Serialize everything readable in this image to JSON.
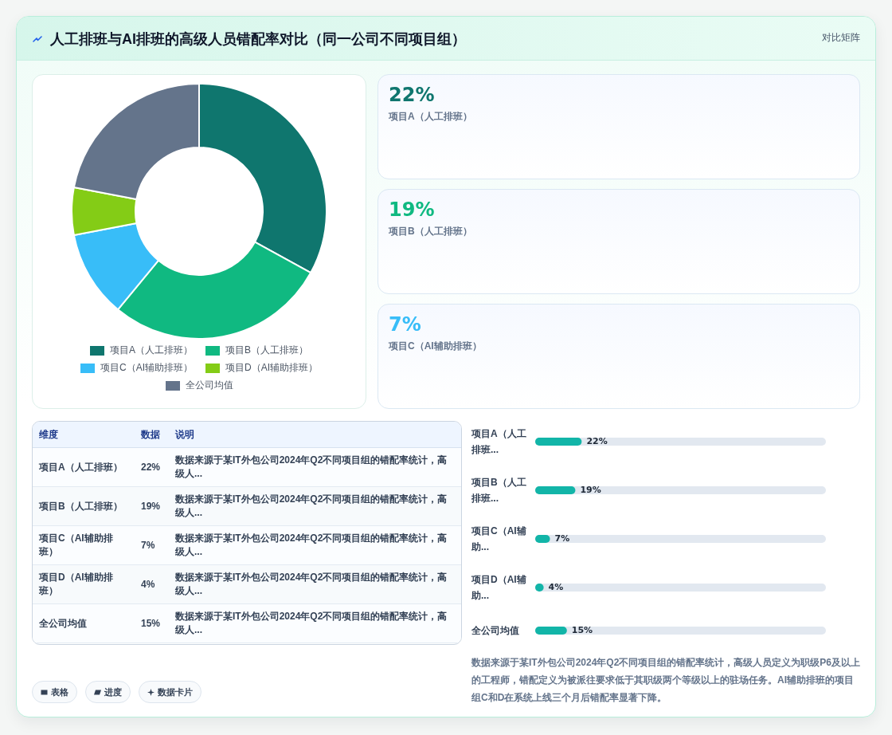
{
  "chart_data": [
    {
      "type": "donut",
      "title": "人工排班与AI排班的高级人员错配率对比（同一公司不同项目组）",
      "categories": [
        "项目A（人工排班）",
        "项目B（人工排班）",
        "项目C（AI辅助排班）",
        "项目D（AI辅助排班）",
        "全公司均值"
      ],
      "values": [
        33,
        28,
        11,
        6,
        22
      ],
      "colors": [
        "#0f766e",
        "#10b981",
        "#38bdf8",
        "#84cc16",
        "#64748b"
      ],
      "legend": "bottom"
    },
    {
      "type": "other",
      "subtitle": "对比矩阵",
      "categories": [
        "项目A（人工排班）",
        "项目B（人工排班）",
        "项目C（AI辅助排班）"
      ],
      "values": [
        22,
        19,
        7
      ],
      "value_labels": [
        "22%",
        "19%",
        "7%"
      ]
    },
    {
      "type": "other",
      "categories": [
        "项目A（人工排班）",
        "项目B（人工排班）",
        "项目C（AI辅助排班）",
        "项目D（AI辅助排班）",
        "全公司均值"
      ],
      "values": [
        22,
        19,
        7,
        4,
        15
      ],
      "value_labels": [
        "22%",
        "19%",
        "7%",
        "4%",
        "15%"
      ],
      "annotations": [
        "维度",
        "数据",
        "说明",
        "数据来源于某IT外包公司2024年Q2不同项目组的错配率统计，高级人...",
        "数据来源于某IT外包公司2024年Q2不同项目组的错配率统计，高级人...",
        "数据来源于某IT外包公司2024年Q2不同项目组的错配率统计，高级人...",
        "数据来源于某IT外包公司2024年Q2不同项目组的错配率统计，高级人...",
        "数据来源于某IT外包公司2024年Q2不同项目组的错配率统计，高级人..."
      ]
    },
    {
      "type": "bar",
      "orientation": "horizontal",
      "categories": [
        "项目A（人工排班...",
        "项目B（人工排班...",
        "项目C（AI辅助...",
        "项目D（AI辅助...",
        "全公司均值"
      ],
      "values": [
        22,
        19,
        7,
        4,
        15
      ],
      "value_labels": [
        "22%",
        "19%",
        "7%",
        "4%",
        "15%"
      ],
      "color": "#12b5a8",
      "annotations": [
        "数据来源于某IT外包公司2024年Q2不同项目组的错配率统计，高级人员定义为职级P6及以上的工程师，错配定义为被派往要求低于其职级两个等级以上的驻场任务。AI辅助排班的项目组C和D在系统上线三个月后错配率显著下降。"
      ]
    },
    {
      "type": "other",
      "annotations": [
        "表格",
        "进度",
        "数据卡片"
      ]
    }
  ]
}
